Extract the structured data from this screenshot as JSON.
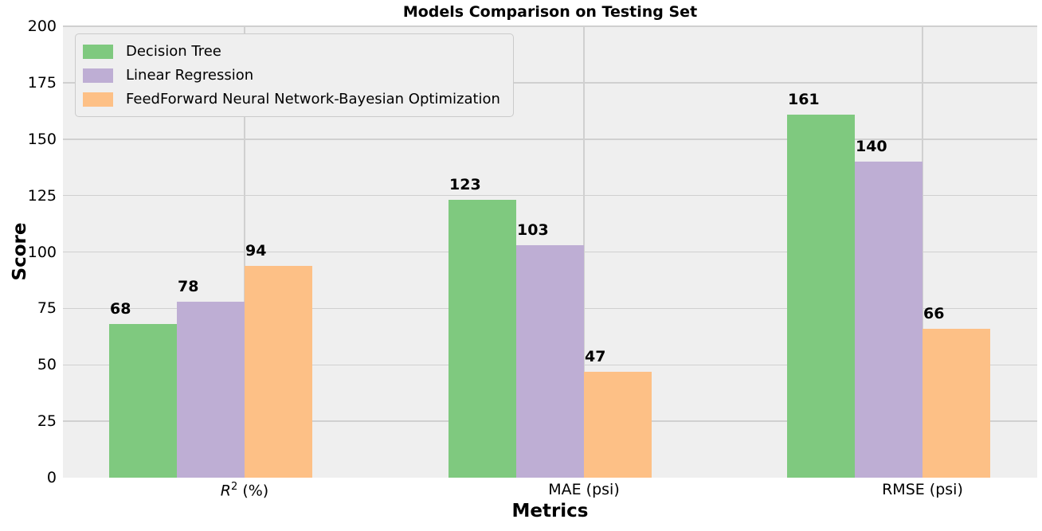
{
  "chart_data": {
    "type": "bar",
    "title": "Models Comparison on Testing Set",
    "xlabel": "Metrics",
    "ylabel": "Score",
    "ylim": [
      0,
      200
    ],
    "yticks": [
      0,
      25,
      50,
      75,
      100,
      125,
      150,
      175,
      200
    ],
    "categories": [
      "R² (%)",
      "MAE (psi)",
      "RMSE (psi)"
    ],
    "categories_rich": [
      {
        "segments": [
          {
            "t": "R",
            "style": "italic"
          },
          {
            "t": "2",
            "style": "sup"
          },
          {
            "t": " (%)",
            "style": ""
          }
        ]
      },
      {
        "segments": [
          {
            "t": "MAE (psi)",
            "style": ""
          }
        ]
      },
      {
        "segments": [
          {
            "t": "RMSE (psi)",
            "style": ""
          }
        ]
      }
    ],
    "series": [
      {
        "name": "Decision Tree",
        "color": "#7fc97f",
        "values": [
          68,
          123,
          161
        ]
      },
      {
        "name": "Linear Regression",
        "color": "#beaed4",
        "values": [
          78,
          103,
          140
        ]
      },
      {
        "name": "FeedForward Neural Network-Bayesian Optimization",
        "color": "#fdc086",
        "values": [
          94,
          47,
          66
        ]
      }
    ],
    "bar_value_labels": [
      [
        "68",
        "78",
        "94"
      ],
      [
        "123",
        "103",
        "47"
      ],
      [
        "161",
        "140",
        "66"
      ]
    ],
    "legend": {
      "position": "upper-left",
      "entries": [
        "Decision Tree",
        "Linear Regression",
        "FeedForward Neural Network-Bayesian Optimization"
      ]
    },
    "grid": {
      "horizontal": true,
      "vertical": true
    },
    "colors": {
      "figure_bg": "#ffffff",
      "axes_bg": "#efefef",
      "gridline": "#d0d0d0",
      "text": "#000000",
      "legend_border": "#cbcbcb"
    }
  }
}
